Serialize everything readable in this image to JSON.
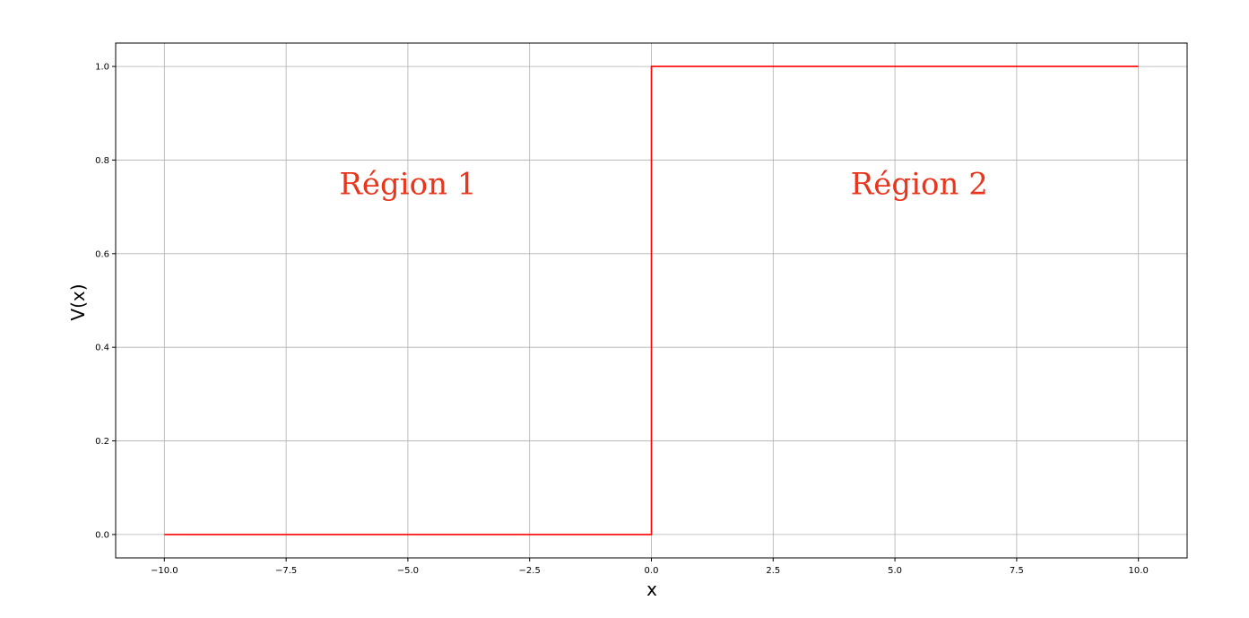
{
  "chart_data": {
    "type": "line",
    "title": "",
    "xlabel": "x",
    "ylabel": "V(x)",
    "xlim": [
      -11.0,
      11.0
    ],
    "ylim": [
      -0.05,
      1.05
    ],
    "grid": true,
    "legend": "none",
    "x_ticks": [
      -10.0,
      -7.5,
      -5.0,
      -2.5,
      0.0,
      2.5,
      5.0,
      7.5,
      10.0
    ],
    "x_tick_labels": [
      "−10.0",
      "−7.5",
      "−5.0",
      "−2.5",
      "0.0",
      "2.5",
      "5.0",
      "7.5",
      "10.0"
    ],
    "y_ticks": [
      0.0,
      0.2,
      0.4,
      0.6,
      0.8,
      1.0
    ],
    "y_tick_labels": [
      "0.0",
      "0.2",
      "0.4",
      "0.6",
      "0.8",
      "1.0"
    ],
    "series": [
      {
        "color": "#ff0000",
        "x": [
          -10.0,
          0.0,
          0.0,
          10.0
        ],
        "y": [
          0.0,
          0.0,
          1.0,
          1.0
        ]
      }
    ],
    "annotations": [
      {
        "text": "Région 1",
        "x": -5.0,
        "y": 0.75,
        "color": "#e8351c"
      },
      {
        "text": "Région 2",
        "x": 5.5,
        "y": 0.75,
        "color": "#e8351c"
      }
    ]
  }
}
